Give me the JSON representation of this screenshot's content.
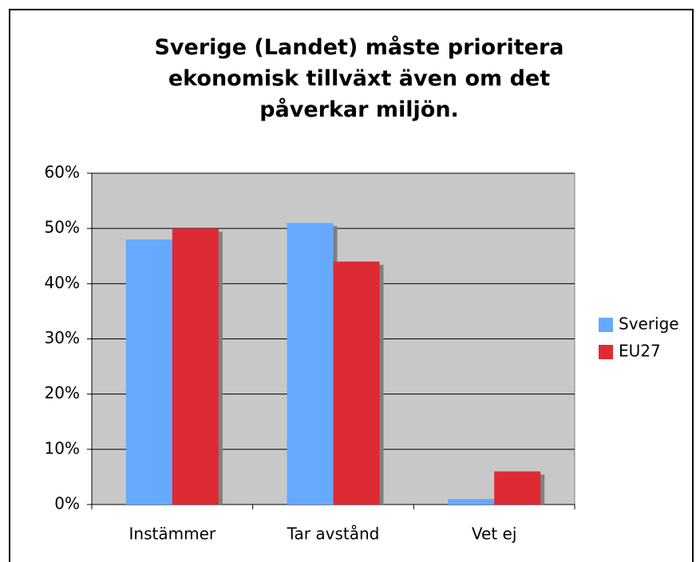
{
  "chart_data": {
    "type": "bar",
    "title": "Sverige (Landet) måste prioritera ekonomisk tillväxt även om det påverkar miljön.",
    "categories": [
      "Instämmer",
      "Tar avstånd",
      "Vet ej"
    ],
    "series": [
      {
        "name": "Sverige",
        "color": "#66aaff",
        "values": [
          48,
          51,
          1
        ]
      },
      {
        "name": "EU27",
        "color": "#dd2a33",
        "values": [
          50,
          44,
          6
        ]
      }
    ],
    "ylim": [
      0,
      60
    ],
    "yticks": [
      {
        "value": 0,
        "label": "0%"
      },
      {
        "value": 10,
        "label": "10%"
      },
      {
        "value": 20,
        "label": "20%"
      },
      {
        "value": 30,
        "label": "30%"
      },
      {
        "value": 40,
        "label": "40%"
      },
      {
        "value": 50,
        "label": "50%"
      },
      {
        "value": 60,
        "label": "60%"
      }
    ],
    "grid": true,
    "legend": "right"
  }
}
